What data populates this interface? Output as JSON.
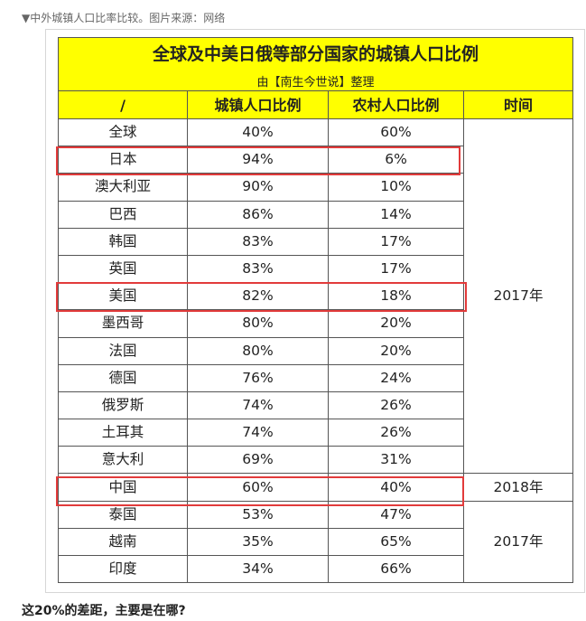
{
  "caption": "▼中外城镇人口比率比较。图片来源：网络",
  "table": {
    "title": "全球及中美日俄等部分国家的城镇人口比例",
    "subtitle": "由【南生今世说】整理",
    "headers": [
      "/",
      "城镇人口比例",
      "农村人口比例",
      "时间"
    ],
    "rows": [
      {
        "country": "全球",
        "urban": "40%",
        "rural": "60%"
      },
      {
        "country": "日本",
        "urban": "94%",
        "rural": "6%"
      },
      {
        "country": "澳大利亚",
        "urban": "90%",
        "rural": "10%"
      },
      {
        "country": "巴西",
        "urban": "86%",
        "rural": "14%"
      },
      {
        "country": "韩国",
        "urban": "83%",
        "rural": "17%"
      },
      {
        "country": "英国",
        "urban": "83%",
        "rural": "17%"
      },
      {
        "country": "美国",
        "urban": "82%",
        "rural": "18%"
      },
      {
        "country": "墨西哥",
        "urban": "80%",
        "rural": "20%"
      },
      {
        "country": "法国",
        "urban": "80%",
        "rural": "20%"
      },
      {
        "country": "德国",
        "urban": "76%",
        "rural": "24%"
      },
      {
        "country": "俄罗斯",
        "urban": "74%",
        "rural": "26%"
      },
      {
        "country": "土耳其",
        "urban": "74%",
        "rural": "26%"
      },
      {
        "country": "意大利",
        "urban": "69%",
        "rural": "31%"
      },
      {
        "country": "中国",
        "urban": "60%",
        "rural": "40%"
      },
      {
        "country": "泰国",
        "urban": "53%",
        "rural": "47%"
      },
      {
        "country": "越南",
        "urban": "35%",
        "rural": "65%"
      },
      {
        "country": "印度",
        "urban": "34%",
        "rural": "66%"
      }
    ],
    "years": [
      "2017年",
      "2018年",
      "2017年"
    ]
  },
  "highlight_color": "#e23b3b",
  "header_bg": "#ffff00",
  "question": "这20%的差距，主要是在哪?"
}
